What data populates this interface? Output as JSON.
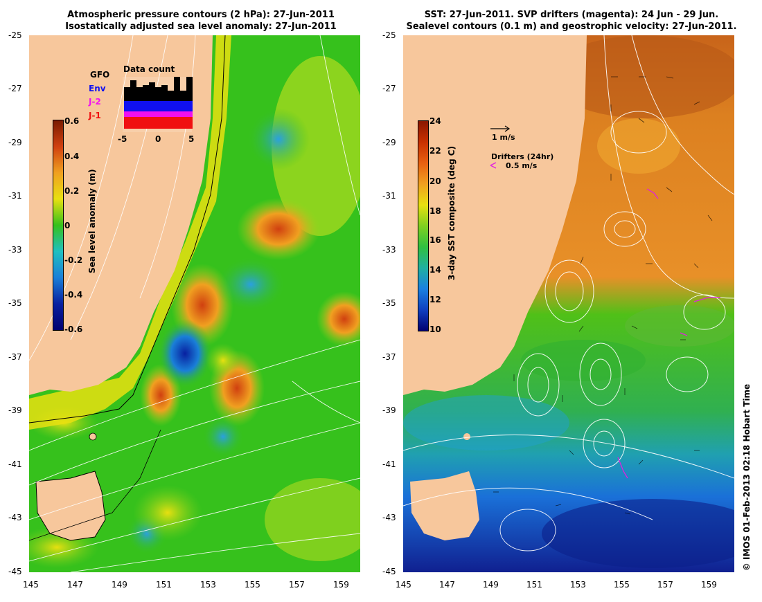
{
  "left_panel": {
    "title_line1": "Atmospheric pressure contours (2 hPa): 27-Jun-2011",
    "title_line2": "Isostatically adjusted sea level anomaly: 27-Jun-2011",
    "colorbar_label": "Sea level anomaly (m)",
    "colorbar_ticks": [
      "0.6",
      "0.4",
      "0.2",
      "0",
      "-0.2",
      "-0.4",
      "-0.6"
    ],
    "legend": {
      "gfo": "GFO",
      "env": "Env",
      "j2": "J-2",
      "j1": "J-1",
      "title": "Data count",
      "ticks": [
        "-5",
        "0",
        "5"
      ]
    }
  },
  "right_panel": {
    "title_line1": "SST: 27-Jun-2011. SVP drifters (magenta): 24 Jun - 29 Jun.",
    "title_line2": "Sealevel contours (0.1 m) and geostrophic velocity: 27-Jun-2011.",
    "colorbar_label": "3-day SST composite (deg C)",
    "colorbar_ticks": [
      "24",
      "22",
      "20",
      "18",
      "16",
      "14",
      "12",
      "10"
    ],
    "velocity_ref": "1 m/s",
    "drifter_title": "Drifters (24hr)",
    "drifter_ref": "0.5 m/s"
  },
  "axes": {
    "lat_ticks": [
      "-25",
      "-27",
      "-29",
      "-31",
      "-33",
      "-35",
      "-37",
      "-39",
      "-41",
      "-43",
      "-45"
    ],
    "lon_ticks": [
      "145",
      "147",
      "149",
      "151",
      "153",
      "155",
      "157",
      "159"
    ]
  },
  "credit": "© IMOS 01-Feb-2013 02:18 Hobart Time",
  "colors": {
    "land": "#f7c79c",
    "ocean_green": "#36c11c",
    "warm_orange": "#e07a1e",
    "cold_blue": "#1a7fd8",
    "drifter": "#e020e0"
  }
}
